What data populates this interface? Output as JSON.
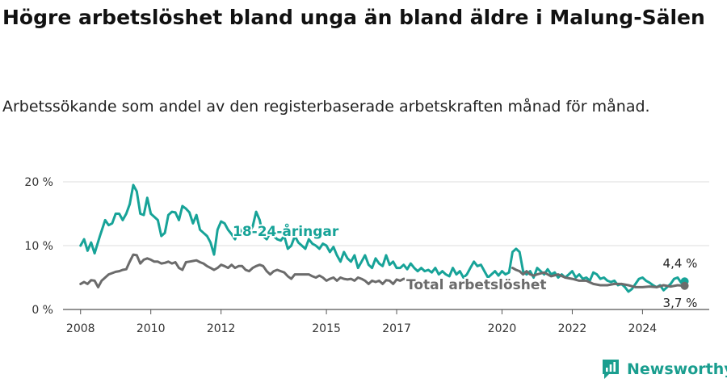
{
  "header": {
    "title": "Högre arbetslöshet bland unga än bland äldre i Malung-Sälen",
    "subtitle": "Arbetssökande som andel av den registerbaserade arbetskraften månad för månad."
  },
  "brand": {
    "name": "Newsworthy",
    "color": "#1a9e8f"
  },
  "chart_data": {
    "type": "line",
    "xlim": [
      2007.5,
      2025.9
    ],
    "ylim": [
      0,
      20
    ],
    "grid": true,
    "x_ticks": [
      {
        "value": 2008,
        "label": "2008"
      },
      {
        "value": 2010,
        "label": "2010"
      },
      {
        "value": 2012,
        "label": "2012"
      },
      {
        "value": 2015,
        "label": "2015"
      },
      {
        "value": 2017,
        "label": "2017"
      },
      {
        "value": 2020,
        "label": "2020"
      },
      {
        "value": 2022,
        "label": "2022"
      },
      {
        "value": 2024,
        "label": "2024"
      }
    ],
    "y_ticks": [
      {
        "value": 0,
        "label": "0 %"
      },
      {
        "value": 10,
        "label": "10 %"
      },
      {
        "value": 20,
        "label": "20 %"
      }
    ],
    "series": [
      {
        "name": "18-24-åringar",
        "color": "#17a398",
        "end_label": "4,4 %",
        "points": [
          [
            2008.0,
            10.0
          ],
          [
            2008.1,
            11.0
          ],
          [
            2008.2,
            9.2
          ],
          [
            2008.3,
            10.5
          ],
          [
            2008.4,
            8.8
          ],
          [
            2008.55,
            11.5
          ],
          [
            2008.7,
            14.0
          ],
          [
            2008.8,
            13.2
          ],
          [
            2008.9,
            13.5
          ],
          [
            2009.0,
            15.0
          ],
          [
            2009.1,
            15.0
          ],
          [
            2009.2,
            14.0
          ],
          [
            2009.3,
            15.0
          ],
          [
            2009.4,
            16.5
          ],
          [
            2009.5,
            19.5
          ],
          [
            2009.6,
            18.5
          ],
          [
            2009.7,
            15.0
          ],
          [
            2009.8,
            14.8
          ],
          [
            2009.9,
            17.5
          ],
          [
            2010.0,
            15.0
          ],
          [
            2010.1,
            14.5
          ],
          [
            2010.2,
            14.0
          ],
          [
            2010.3,
            11.5
          ],
          [
            2010.4,
            12.0
          ],
          [
            2010.5,
            14.8
          ],
          [
            2010.6,
            15.3
          ],
          [
            2010.7,
            15.2
          ],
          [
            2010.8,
            14.0
          ],
          [
            2010.9,
            16.2
          ],
          [
            2011.0,
            15.8
          ],
          [
            2011.1,
            15.2
          ],
          [
            2011.2,
            13.5
          ],
          [
            2011.3,
            14.8
          ],
          [
            2011.4,
            12.5
          ],
          [
            2011.5,
            12.0
          ],
          [
            2011.6,
            11.5
          ],
          [
            2011.7,
            10.5
          ],
          [
            2011.8,
            8.6
          ],
          [
            2011.9,
            12.5
          ],
          [
            2012.0,
            13.8
          ],
          [
            2012.1,
            13.5
          ],
          [
            2012.2,
            12.5
          ],
          [
            2012.3,
            11.8
          ],
          [
            2012.4,
            11.0
          ],
          [
            2012.5,
            13.0
          ],
          [
            2012.6,
            11.8
          ],
          [
            2012.7,
            12.5
          ],
          [
            2012.8,
            12.0
          ],
          [
            2012.9,
            13.0
          ],
          [
            2013.0,
            15.3
          ],
          [
            2013.1,
            14.0
          ],
          [
            2013.2,
            11.5
          ],
          [
            2013.3,
            11.0
          ],
          [
            2013.4,
            12.0
          ],
          [
            2013.5,
            11.5
          ],
          [
            2013.6,
            11.0
          ],
          [
            2013.7,
            10.8
          ],
          [
            2013.8,
            11.5
          ],
          [
            2013.9,
            9.5
          ],
          [
            2014.0,
            10.0
          ],
          [
            2014.1,
            11.5
          ],
          [
            2014.2,
            10.5
          ],
          [
            2014.3,
            10.0
          ],
          [
            2014.4,
            9.5
          ],
          [
            2014.5,
            11.0
          ],
          [
            2014.6,
            10.3
          ],
          [
            2014.7,
            10.0
          ],
          [
            2014.8,
            9.5
          ],
          [
            2014.9,
            10.3
          ],
          [
            2015.0,
            10.0
          ],
          [
            2015.1,
            9.0
          ],
          [
            2015.2,
            9.8
          ],
          [
            2015.3,
            8.5
          ],
          [
            2015.4,
            7.5
          ],
          [
            2015.5,
            9.0
          ],
          [
            2015.6,
            8.0
          ],
          [
            2015.7,
            7.5
          ],
          [
            2015.8,
            8.5
          ],
          [
            2015.9,
            6.5
          ],
          [
            2016.0,
            7.5
          ],
          [
            2016.1,
            8.5
          ],
          [
            2016.2,
            7.0
          ],
          [
            2016.3,
            6.5
          ],
          [
            2016.4,
            8.0
          ],
          [
            2016.5,
            7.2
          ],
          [
            2016.6,
            6.8
          ],
          [
            2016.7,
            8.5
          ],
          [
            2016.8,
            7.0
          ],
          [
            2016.9,
            7.5
          ],
          [
            2017.0,
            6.5
          ],
          [
            2017.1,
            6.5
          ],
          [
            2017.2,
            7.0
          ],
          [
            2017.3,
            6.3
          ],
          [
            2017.4,
            7.2
          ],
          [
            2017.5,
            6.5
          ],
          [
            2017.6,
            6.0
          ],
          [
            2017.7,
            6.5
          ],
          [
            2017.8,
            6.0
          ],
          [
            2017.9,
            6.2
          ],
          [
            2018.0,
            5.8
          ],
          [
            2018.1,
            6.5
          ],
          [
            2018.2,
            5.5
          ],
          [
            2018.3,
            6.0
          ],
          [
            2018.4,
            5.5
          ],
          [
            2018.5,
            5.2
          ],
          [
            2018.6,
            6.5
          ],
          [
            2018.7,
            5.5
          ],
          [
            2018.8,
            6.0
          ],
          [
            2018.9,
            5.0
          ],
          [
            2019.0,
            5.5
          ],
          [
            2019.1,
            6.5
          ],
          [
            2019.2,
            7.5
          ],
          [
            2019.3,
            6.8
          ],
          [
            2019.4,
            7.0
          ],
          [
            2019.5,
            6.0
          ],
          [
            2019.6,
            5.0
          ],
          [
            2019.7,
            5.5
          ],
          [
            2019.8,
            6.0
          ],
          [
            2019.9,
            5.3
          ],
          [
            2020.0,
            6.0
          ],
          [
            2020.1,
            5.5
          ],
          [
            2020.2,
            5.8
          ],
          [
            2020.3,
            9.0
          ],
          [
            2020.4,
            9.5
          ],
          [
            2020.5,
            9.0
          ],
          [
            2020.6,
            6.0
          ],
          [
            2020.7,
            5.5
          ],
          [
            2020.8,
            6.0
          ],
          [
            2020.9,
            5.0
          ],
          [
            2021.0,
            6.5
          ],
          [
            2021.1,
            6.0
          ],
          [
            2021.2,
            5.5
          ],
          [
            2021.3,
            6.3
          ],
          [
            2021.4,
            5.5
          ],
          [
            2021.5,
            5.8
          ],
          [
            2021.6,
            5.0
          ],
          [
            2021.7,
            5.5
          ],
          [
            2021.8,
            5.0
          ],
          [
            2021.9,
            5.5
          ],
          [
            2022.0,
            6.0
          ],
          [
            2022.1,
            5.0
          ],
          [
            2022.2,
            5.5
          ],
          [
            2022.3,
            4.8
          ],
          [
            2022.4,
            5.0
          ],
          [
            2022.5,
            4.5
          ],
          [
            2022.6,
            5.8
          ],
          [
            2022.7,
            5.5
          ],
          [
            2022.8,
            4.8
          ],
          [
            2022.9,
            5.0
          ],
          [
            2023.0,
            4.5
          ],
          [
            2023.1,
            4.3
          ],
          [
            2023.2,
            4.5
          ],
          [
            2023.3,
            3.8
          ],
          [
            2023.4,
            4.0
          ],
          [
            2023.5,
            3.5
          ],
          [
            2023.6,
            2.8
          ],
          [
            2023.7,
            3.2
          ],
          [
            2023.8,
            4.0
          ],
          [
            2023.9,
            4.8
          ],
          [
            2024.0,
            5.0
          ],
          [
            2024.1,
            4.5
          ],
          [
            2024.2,
            4.2
          ],
          [
            2024.3,
            3.8
          ],
          [
            2024.4,
            3.5
          ],
          [
            2024.5,
            3.8
          ],
          [
            2024.6,
            3.0
          ],
          [
            2024.7,
            3.5
          ],
          [
            2024.8,
            4.0
          ],
          [
            2024.9,
            4.8
          ],
          [
            2025.0,
            5.0
          ],
          [
            2025.1,
            4.2
          ],
          [
            2025.2,
            4.4
          ]
        ]
      },
      {
        "name": "Total arbetslöshet",
        "color": "#6b6b6b",
        "end_label": "3,7 %",
        "points": [
          [
            2008.0,
            4.0
          ],
          [
            2008.1,
            4.3
          ],
          [
            2008.2,
            4.0
          ],
          [
            2008.3,
            4.6
          ],
          [
            2008.4,
            4.5
          ],
          [
            2008.5,
            3.5
          ],
          [
            2008.6,
            4.5
          ],
          [
            2008.7,
            5.0
          ],
          [
            2008.8,
            5.5
          ],
          [
            2008.9,
            5.7
          ],
          [
            2009.0,
            5.9
          ],
          [
            2009.1,
            6.0
          ],
          [
            2009.2,
            6.2
          ],
          [
            2009.3,
            6.3
          ],
          [
            2009.4,
            7.5
          ],
          [
            2009.5,
            8.6
          ],
          [
            2009.6,
            8.5
          ],
          [
            2009.7,
            7.2
          ],
          [
            2009.8,
            7.8
          ],
          [
            2009.9,
            8.0
          ],
          [
            2010.0,
            7.8
          ],
          [
            2010.1,
            7.5
          ],
          [
            2010.2,
            7.5
          ],
          [
            2010.3,
            7.2
          ],
          [
            2010.4,
            7.3
          ],
          [
            2010.5,
            7.5
          ],
          [
            2010.6,
            7.2
          ],
          [
            2010.7,
            7.4
          ],
          [
            2010.8,
            6.5
          ],
          [
            2010.9,
            6.2
          ],
          [
            2011.0,
            7.4
          ],
          [
            2011.1,
            7.5
          ],
          [
            2011.2,
            7.6
          ],
          [
            2011.3,
            7.7
          ],
          [
            2011.4,
            7.4
          ],
          [
            2011.5,
            7.2
          ],
          [
            2011.6,
            6.8
          ],
          [
            2011.7,
            6.5
          ],
          [
            2011.8,
            6.2
          ],
          [
            2011.9,
            6.5
          ],
          [
            2012.0,
            7.0
          ],
          [
            2012.1,
            6.8
          ],
          [
            2012.2,
            6.5
          ],
          [
            2012.3,
            7.0
          ],
          [
            2012.4,
            6.5
          ],
          [
            2012.5,
            6.8
          ],
          [
            2012.6,
            6.8
          ],
          [
            2012.7,
            6.2
          ],
          [
            2012.8,
            6.0
          ],
          [
            2012.9,
            6.5
          ],
          [
            2013.0,
            6.8
          ],
          [
            2013.1,
            7.0
          ],
          [
            2013.2,
            6.8
          ],
          [
            2013.3,
            6.0
          ],
          [
            2013.4,
            5.5
          ],
          [
            2013.5,
            6.0
          ],
          [
            2013.6,
            6.2
          ],
          [
            2013.7,
            6.0
          ],
          [
            2013.8,
            5.8
          ],
          [
            2013.9,
            5.2
          ],
          [
            2014.0,
            4.8
          ],
          [
            2014.1,
            5.5
          ],
          [
            2014.2,
            5.5
          ],
          [
            2014.3,
            5.5
          ],
          [
            2014.4,
            5.5
          ],
          [
            2014.5,
            5.5
          ],
          [
            2014.6,
            5.2
          ],
          [
            2014.7,
            5.0
          ],
          [
            2014.8,
            5.3
          ],
          [
            2014.9,
            5.0
          ],
          [
            2015.0,
            4.5
          ],
          [
            2015.1,
            4.8
          ],
          [
            2015.2,
            5.0
          ],
          [
            2015.3,
            4.5
          ],
          [
            2015.4,
            5.0
          ],
          [
            2015.5,
            4.8
          ],
          [
            2015.6,
            4.7
          ],
          [
            2015.7,
            4.8
          ],
          [
            2015.8,
            4.5
          ],
          [
            2015.9,
            5.0
          ],
          [
            2016.0,
            4.8
          ],
          [
            2016.1,
            4.5
          ],
          [
            2016.2,
            4.0
          ],
          [
            2016.3,
            4.5
          ],
          [
            2016.4,
            4.3
          ],
          [
            2016.5,
            4.5
          ],
          [
            2016.6,
            4.0
          ],
          [
            2016.7,
            4.6
          ],
          [
            2016.8,
            4.5
          ],
          [
            2016.9,
            4.0
          ],
          [
            2017.0,
            4.7
          ],
          [
            2017.1,
            4.5
          ],
          [
            2017.2,
            4.8
          ],
          [
            2017.3,
            4.8
          ],
          [
            2020.3,
            6.5
          ],
          [
            2020.4,
            6.2
          ],
          [
            2020.5,
            6.0
          ],
          [
            2020.6,
            5.5
          ],
          [
            2020.7,
            6.0
          ],
          [
            2020.8,
            5.5
          ],
          [
            2020.9,
            5.3
          ],
          [
            2021.0,
            5.5
          ],
          [
            2021.2,
            5.8
          ],
          [
            2021.4,
            5.2
          ],
          [
            2021.6,
            5.5
          ],
          [
            2021.8,
            5.0
          ],
          [
            2022.0,
            4.8
          ],
          [
            2022.2,
            4.5
          ],
          [
            2022.4,
            4.5
          ],
          [
            2022.6,
            4.0
          ],
          [
            2022.8,
            3.8
          ],
          [
            2023.0,
            3.8
          ],
          [
            2023.2,
            4.0
          ],
          [
            2023.4,
            4.0
          ],
          [
            2023.6,
            3.8
          ],
          [
            2023.8,
            3.5
          ],
          [
            2024.0,
            3.5
          ],
          [
            2024.2,
            3.6
          ],
          [
            2024.4,
            3.5
          ],
          [
            2024.6,
            3.8
          ],
          [
            2024.8,
            3.6
          ],
          [
            2025.0,
            3.8
          ],
          [
            2025.2,
            3.7
          ]
        ]
      }
    ]
  }
}
